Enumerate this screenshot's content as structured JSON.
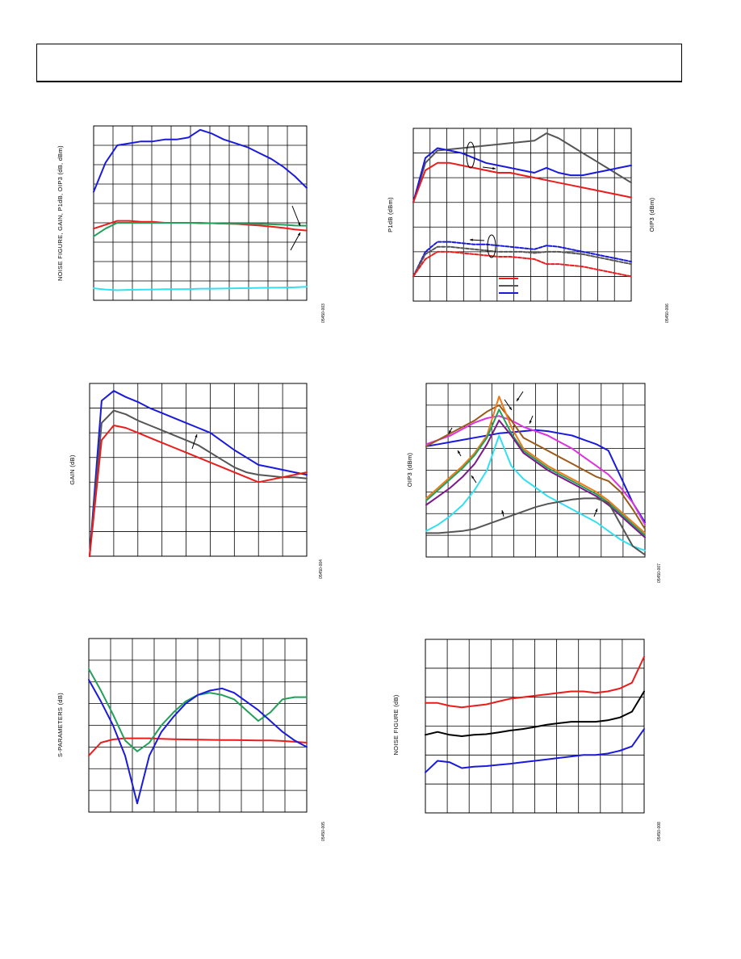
{
  "page": {
    "header": ""
  },
  "colors": {
    "blue": "#1a1adc",
    "red": "#ea1c1c",
    "green": "#22a05a",
    "cyan": "#33e0f0",
    "gray": "#555555",
    "black": "#000000",
    "magenta": "#dd33dd",
    "brown": "#9a5a1a",
    "purple": "#7a1a8a",
    "orange": "#f07a1a"
  },
  "chart_data": [
    {
      "type": "line",
      "ylabel": "NOISE FIGURE, GAIN, P1dB, OIP3 (dB, dBm)",
      "figure_id": "05450-003",
      "grid": true,
      "x": [
        0,
        0.5,
        1,
        1.5,
        2,
        2.5,
        3,
        3.5,
        4,
        4.5,
        5,
        5.5,
        6,
        6.5,
        7,
        7.5,
        8,
        8.5,
        9
      ],
      "ylim": [
        0,
        9
      ],
      "series": [
        {
          "color_key": "blue",
          "values": [
            5.6,
            7.1,
            8.0,
            8.1,
            8.2,
            8.2,
            8.3,
            8.3,
            8.4,
            8.8,
            8.6,
            8.3,
            8.1,
            7.9,
            7.6,
            7.3,
            6.9,
            6.4,
            5.8
          ]
        },
        {
          "color_key": "red",
          "values": [
            3.7,
            3.9,
            4.1,
            4.1,
            4.05,
            4.05,
            4.0,
            4.0,
            4.0,
            3.98,
            3.98,
            3.96,
            3.94,
            3.9,
            3.86,
            3.8,
            3.74,
            3.66,
            3.6
          ]
        },
        {
          "color_key": "green",
          "values": [
            3.3,
            3.7,
            4.0,
            4.0,
            4.0,
            4.0,
            4.0,
            4.0,
            4.0,
            4.0,
            3.98,
            3.96,
            3.95,
            3.95,
            3.94,
            3.92,
            3.9,
            3.86,
            3.85
          ]
        },
        {
          "color_key": "cyan",
          "values": [
            0.62,
            0.56,
            0.52,
            0.54,
            0.55,
            0.56,
            0.57,
            0.57,
            0.58,
            0.6,
            0.6,
            0.61,
            0.62,
            0.63,
            0.64,
            0.65,
            0.66,
            0.67,
            0.7
          ]
        }
      ]
    },
    {
      "type": "line",
      "ylabel": "P1dB (dBm)",
      "y2label": "OIP3 (dBm)",
      "figure_id": "05450-006",
      "grid": true,
      "x": [
        0,
        0.5,
        1,
        1.5,
        2,
        2.5,
        3,
        3.5,
        4,
        4.5,
        5,
        5.5,
        6,
        6.5,
        7,
        7.5,
        8,
        8.5,
        9
      ],
      "ylim": [
        0,
        7
      ],
      "series": [
        {
          "color_key": "gray",
          "values": [
            4.0,
            5.6,
            6.1,
            6.15,
            6.2,
            6.25,
            6.3,
            6.35,
            6.4,
            6.45,
            6.5,
            6.8,
            6.6,
            6.3,
            6.0,
            5.7,
            5.4,
            5.1,
            4.8
          ]
        },
        {
          "color_key": "blue",
          "values": [
            4.0,
            5.8,
            6.2,
            6.1,
            6.0,
            5.8,
            5.6,
            5.5,
            5.4,
            5.3,
            5.2,
            5.4,
            5.2,
            5.1,
            5.1,
            5.2,
            5.3,
            5.4,
            5.5
          ]
        },
        {
          "color_key": "red",
          "values": [
            4.0,
            5.3,
            5.6,
            5.6,
            5.5,
            5.4,
            5.3,
            5.2,
            5.2,
            5.1,
            5.0,
            4.9,
            4.8,
            4.7,
            4.6,
            4.5,
            4.4,
            4.3,
            4.2
          ]
        },
        {
          "color_key": "blue",
          "dashed": true,
          "values": [
            1.0,
            2.0,
            2.4,
            2.4,
            2.35,
            2.3,
            2.3,
            2.25,
            2.2,
            2.15,
            2.1,
            2.25,
            2.2,
            2.1,
            2.0,
            1.9,
            1.8,
            1.7,
            1.6
          ]
        },
        {
          "color_key": "gray",
          "dashed": true,
          "values": [
            1.0,
            1.9,
            2.2,
            2.2,
            2.15,
            2.1,
            2.05,
            2.0,
            2.0,
            2.0,
            1.95,
            2.0,
            2.0,
            1.95,
            1.9,
            1.8,
            1.7,
            1.6,
            1.5
          ]
        },
        {
          "color_key": "red",
          "dashed": true,
          "values": [
            1.0,
            1.7,
            2.0,
            2.0,
            1.95,
            1.9,
            1.85,
            1.8,
            1.8,
            1.75,
            1.7,
            1.5,
            1.5,
            1.45,
            1.4,
            1.3,
            1.2,
            1.1,
            1.0
          ]
        }
      ],
      "legend_colors": [
        "red",
        "gray",
        "blue"
      ]
    },
    {
      "type": "line",
      "ylabel": "GAIN (dB)",
      "figure_id": "05450-004",
      "grid": true,
      "x": [
        0,
        0.5,
        1,
        1.5,
        2,
        2.5,
        3,
        3.5,
        4,
        4.5,
        5,
        5.5,
        6,
        6.5,
        7,
        7.5,
        8,
        8.5,
        9
      ],
      "ylim": [
        0,
        7
      ],
      "series": [
        {
          "color_key": "blue",
          "values": [
            0,
            6.3,
            6.7,
            6.45,
            6.25,
            6.0,
            5.8,
            5.6,
            5.4,
            5.2,
            5.0,
            4.65,
            4.3,
            4.0,
            3.7,
            3.6,
            3.5,
            3.4,
            3.3
          ]
        },
        {
          "color_key": "gray",
          "values": [
            0,
            5.4,
            5.9,
            5.75,
            5.5,
            5.3,
            5.1,
            4.9,
            4.7,
            4.5,
            4.2,
            3.9,
            3.6,
            3.4,
            3.3,
            3.25,
            3.2,
            3.2,
            3.15
          ]
        },
        {
          "color_key": "red",
          "values": [
            0,
            4.7,
            5.3,
            5.2,
            5.0,
            4.8,
            4.6,
            4.4,
            4.2,
            4.0,
            3.8,
            3.6,
            3.4,
            3.2,
            3.0,
            3.1,
            3.2,
            3.3,
            3.4
          ]
        }
      ]
    },
    {
      "type": "line",
      "ylabel": "OIP3 (dBm)",
      "figure_id": "05450-007",
      "grid": true,
      "x": [
        0,
        0.5,
        1,
        1.5,
        2,
        2.5,
        3,
        3.5,
        4,
        4.5,
        5,
        5.5,
        6,
        6.5,
        7,
        7.5,
        8,
        8.5,
        9
      ],
      "ylim": [
        0,
        8
      ],
      "series": [
        {
          "color_key": "blue",
          "values": [
            5.1,
            5.2,
            5.3,
            5.4,
            5.5,
            5.6,
            5.7,
            5.75,
            5.8,
            5.85,
            5.8,
            5.7,
            5.6,
            5.4,
            5.2,
            4.9,
            3.7,
            2.5,
            1.6
          ]
        },
        {
          "color_key": "magenta",
          "values": [
            5.2,
            5.4,
            5.6,
            5.9,
            6.2,
            6.4,
            6.5,
            6.3,
            6.0,
            5.8,
            5.6,
            5.3,
            5.0,
            4.6,
            4.2,
            3.8,
            3.2,
            2.5,
            1.5
          ]
        },
        {
          "color_key": "brown",
          "values": [
            5.1,
            5.4,
            5.7,
            6.0,
            6.3,
            6.7,
            7.0,
            6.3,
            5.5,
            5.2,
            4.9,
            4.6,
            4.3,
            4.0,
            3.7,
            3.5,
            3.0,
            2.2,
            1.3
          ]
        },
        {
          "color_key": "orange",
          "values": [
            2.7,
            3.2,
            3.7,
            4.2,
            4.8,
            5.6,
            7.4,
            6.0,
            5.0,
            4.6,
            4.2,
            3.9,
            3.6,
            3.3,
            3.0,
            2.6,
            2.1,
            1.6,
            1.1
          ]
        },
        {
          "color_key": "green",
          "values": [
            2.6,
            3.1,
            3.6,
            4.1,
            4.7,
            5.5,
            6.8,
            5.7,
            4.9,
            4.5,
            4.1,
            3.8,
            3.5,
            3.2,
            2.9,
            2.5,
            2.0,
            1.5,
            1.0
          ]
        },
        {
          "color_key": "purple",
          "values": [
            2.4,
            2.8,
            3.2,
            3.7,
            4.3,
            5.2,
            6.3,
            5.6,
            4.8,
            4.4,
            4.0,
            3.7,
            3.4,
            3.1,
            2.8,
            2.4,
            1.9,
            1.4,
            0.9
          ]
        },
        {
          "color_key": "cyan",
          "values": [
            1.2,
            1.5,
            1.9,
            2.4,
            3.1,
            4.0,
            5.6,
            4.2,
            3.6,
            3.2,
            2.8,
            2.5,
            2.2,
            1.9,
            1.6,
            1.2,
            0.8,
            0.5,
            0.3
          ]
        },
        {
          "color_key": "gray",
          "values": [
            1.1,
            1.1,
            1.15,
            1.2,
            1.3,
            1.5,
            1.7,
            1.9,
            2.1,
            2.3,
            2.45,
            2.55,
            2.65,
            2.7,
            2.7,
            2.5,
            1.5,
            0.5,
            0.1
          ]
        }
      ]
    },
    {
      "type": "line",
      "ylabel": "S-PARAMETERS (dB)",
      "figure_id": "05450-005",
      "grid": true,
      "x": [
        0,
        0.5,
        1,
        1.5,
        2,
        2.5,
        3,
        3.5,
        4,
        4.5,
        5,
        5.5,
        6,
        6.5,
        7,
        7.5,
        8,
        8.5,
        9
      ],
      "ylim": [
        0,
        8
      ],
      "series": [
        {
          "color_key": "red",
          "values": [
            2.6,
            3.2,
            3.35,
            3.4,
            3.4,
            3.4,
            3.38,
            3.36,
            3.35,
            3.34,
            3.33,
            3.32,
            3.32,
            3.31,
            3.3,
            3.3,
            3.28,
            3.24,
            3.2
          ]
        },
        {
          "color_key": "green",
          "values": [
            6.6,
            5.6,
            4.5,
            3.3,
            2.8,
            3.2,
            4.0,
            4.6,
            5.1,
            5.4,
            5.5,
            5.4,
            5.2,
            4.7,
            4.2,
            4.6,
            5.2,
            5.3,
            5.3
          ]
        },
        {
          "color_key": "blue",
          "values": [
            6.1,
            5.1,
            4.0,
            2.6,
            0.4,
            2.6,
            3.7,
            4.4,
            5.0,
            5.4,
            5.6,
            5.7,
            5.5,
            5.1,
            4.7,
            4.2,
            3.7,
            3.3,
            3.0
          ]
        }
      ]
    },
    {
      "type": "line",
      "ylabel": "NOISE FIGURE (dB)",
      "figure_id": "05450-008",
      "grid": true,
      "x": [
        0,
        0.5,
        1,
        1.5,
        2,
        2.5,
        3,
        3.5,
        4,
        4.5,
        5,
        5.5,
        6,
        6.5,
        7,
        7.5,
        8,
        8.5,
        9
      ],
      "ylim": [
        0,
        6
      ],
      "series": [
        {
          "color_key": "red",
          "values": [
            3.8,
            3.8,
            3.7,
            3.65,
            3.7,
            3.75,
            3.85,
            3.95,
            4.0,
            4.05,
            4.1,
            4.15,
            4.2,
            4.2,
            4.15,
            4.2,
            4.3,
            4.5,
            5.4
          ]
        },
        {
          "color_key": "black",
          "values": [
            2.7,
            2.8,
            2.7,
            2.65,
            2.7,
            2.72,
            2.78,
            2.85,
            2.9,
            2.97,
            3.05,
            3.1,
            3.15,
            3.15,
            3.15,
            3.2,
            3.3,
            3.5,
            4.2
          ]
        },
        {
          "color_key": "blue",
          "values": [
            1.4,
            1.8,
            1.75,
            1.55,
            1.6,
            1.62,
            1.66,
            1.7,
            1.75,
            1.8,
            1.85,
            1.9,
            1.95,
            2.0,
            2.0,
            2.05,
            2.15,
            2.3,
            2.9
          ]
        }
      ]
    }
  ]
}
